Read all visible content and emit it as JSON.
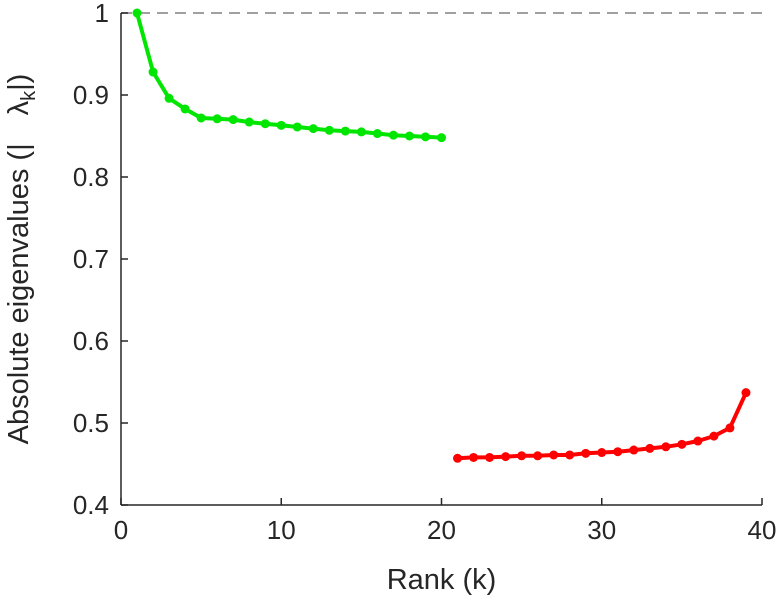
{
  "chart_data": {
    "type": "line",
    "title": "",
    "xlabel": "Rank (k)",
    "ylabel_parts": [
      "Absolute eigenvalues (|",
      "λ",
      "k",
      "|)"
    ],
    "xlim": [
      0,
      40
    ],
    "ylim": [
      0.4,
      1.0
    ],
    "xticks": [
      0,
      10,
      20,
      30,
      40
    ],
    "yticks": [
      0.4,
      0.5,
      0.6,
      0.7,
      0.8,
      0.9,
      1.0
    ],
    "xtick_labels": [
      "0",
      "10",
      "20",
      "30",
      "40"
    ],
    "ytick_labels": [
      "0.4",
      "0.5",
      "0.6",
      "0.7",
      "0.8",
      "0.9",
      "1"
    ],
    "grid": false,
    "reference_line": {
      "y": 1.0,
      "style": "dashed",
      "color": "#808080"
    },
    "series": [
      {
        "color": "#00e600",
        "x": [
          1,
          2,
          3,
          4,
          5,
          6,
          7,
          8,
          9,
          10,
          11,
          12,
          13,
          14,
          15,
          16,
          17,
          18,
          19,
          20
        ],
        "y": [
          1.0,
          0.928,
          0.896,
          0.883,
          0.872,
          0.871,
          0.87,
          0.867,
          0.865,
          0.863,
          0.861,
          0.859,
          0.857,
          0.856,
          0.855,
          0.853,
          0.851,
          0.85,
          0.849,
          0.848
        ]
      },
      {
        "color": "#ff0000",
        "x": [
          21,
          22,
          23,
          24,
          25,
          26,
          27,
          28,
          29,
          30,
          31,
          32,
          33,
          34,
          35,
          36,
          37,
          38,
          39
        ],
        "y": [
          0.457,
          0.458,
          0.458,
          0.459,
          0.46,
          0.46,
          0.461,
          0.461,
          0.463,
          0.464,
          0.465,
          0.467,
          0.469,
          0.471,
          0.474,
          0.478,
          0.484,
          0.494,
          0.537
        ]
      }
    ]
  }
}
